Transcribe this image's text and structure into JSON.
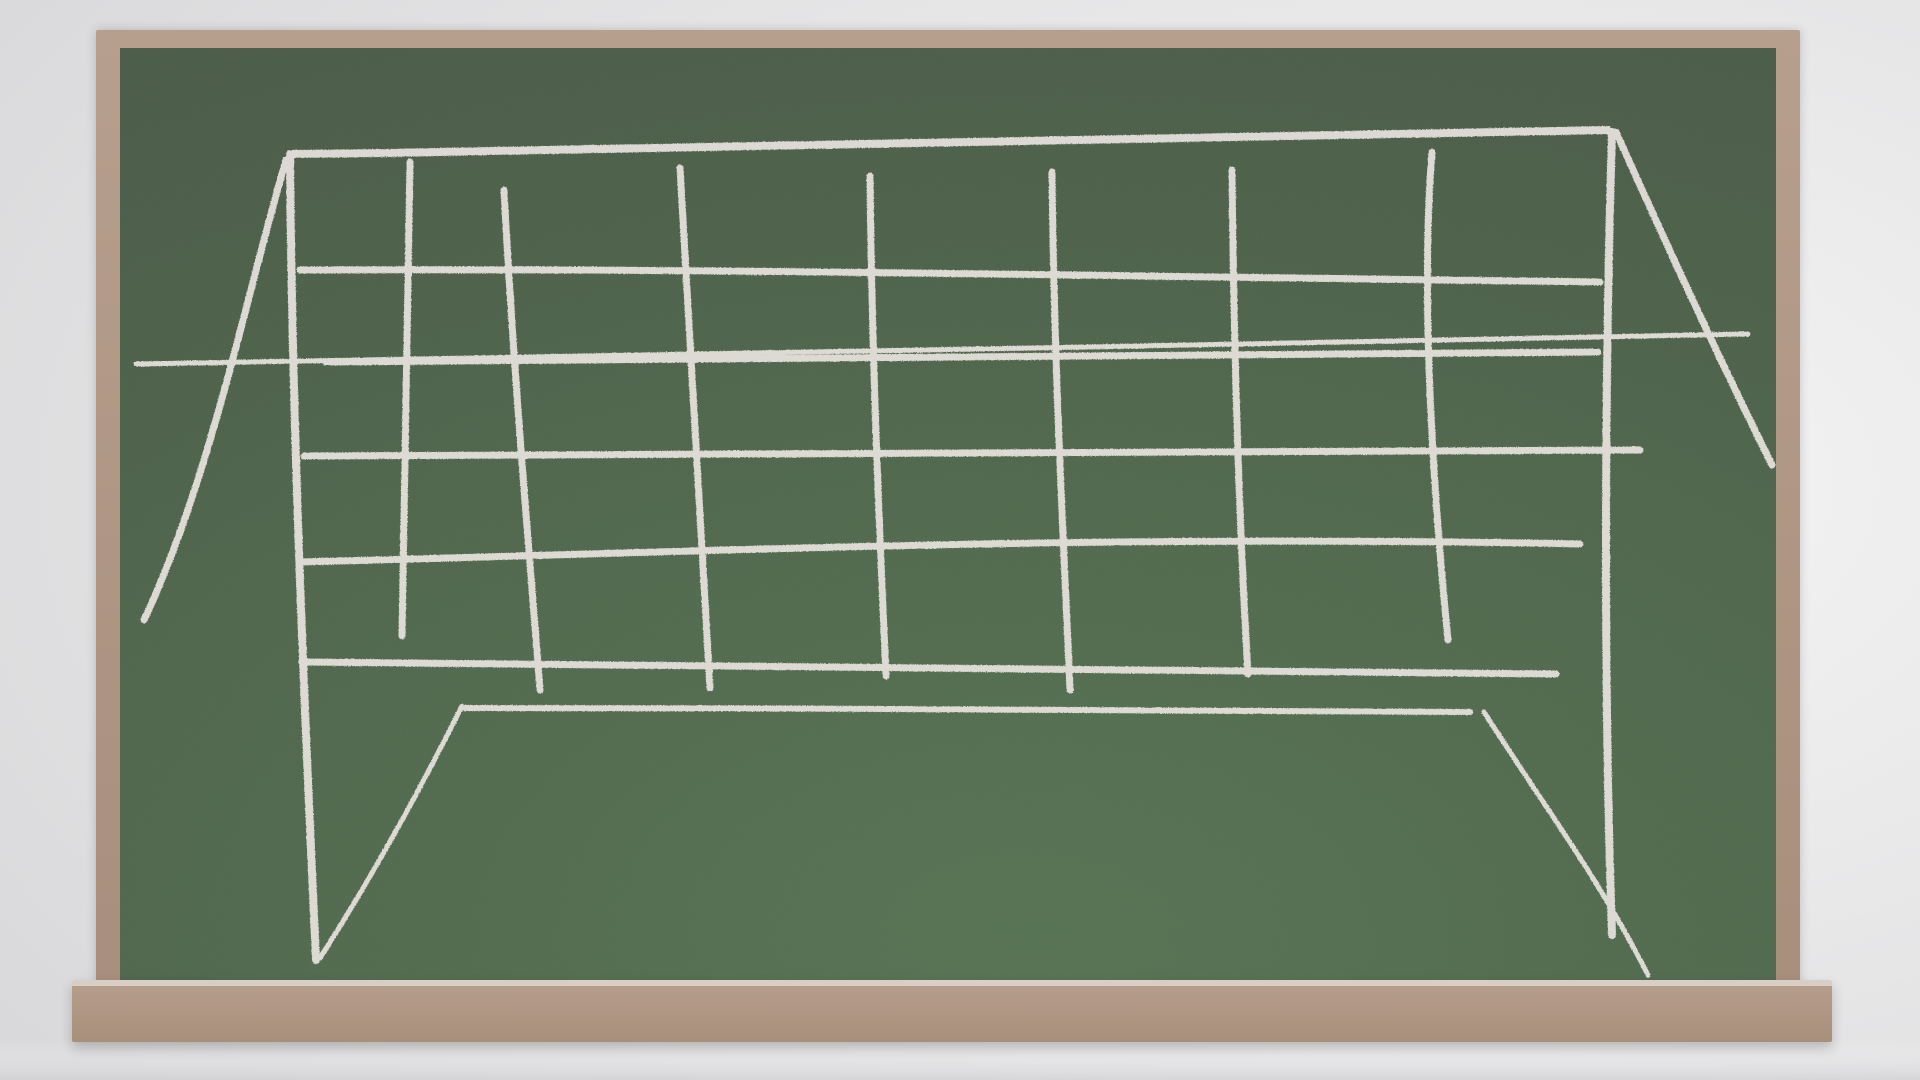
{
  "colors": {
    "wall_light": "#f6f6f6",
    "wall_shadow": "#d9d9db",
    "frame": "#b79f8d",
    "frame_dark": "#a88f7c",
    "board_dark": "#4a5b47",
    "board_light": "#557352",
    "chalk": "#e9e4e0"
  },
  "icons": {
    "drawing": "goal-net-icon"
  }
}
